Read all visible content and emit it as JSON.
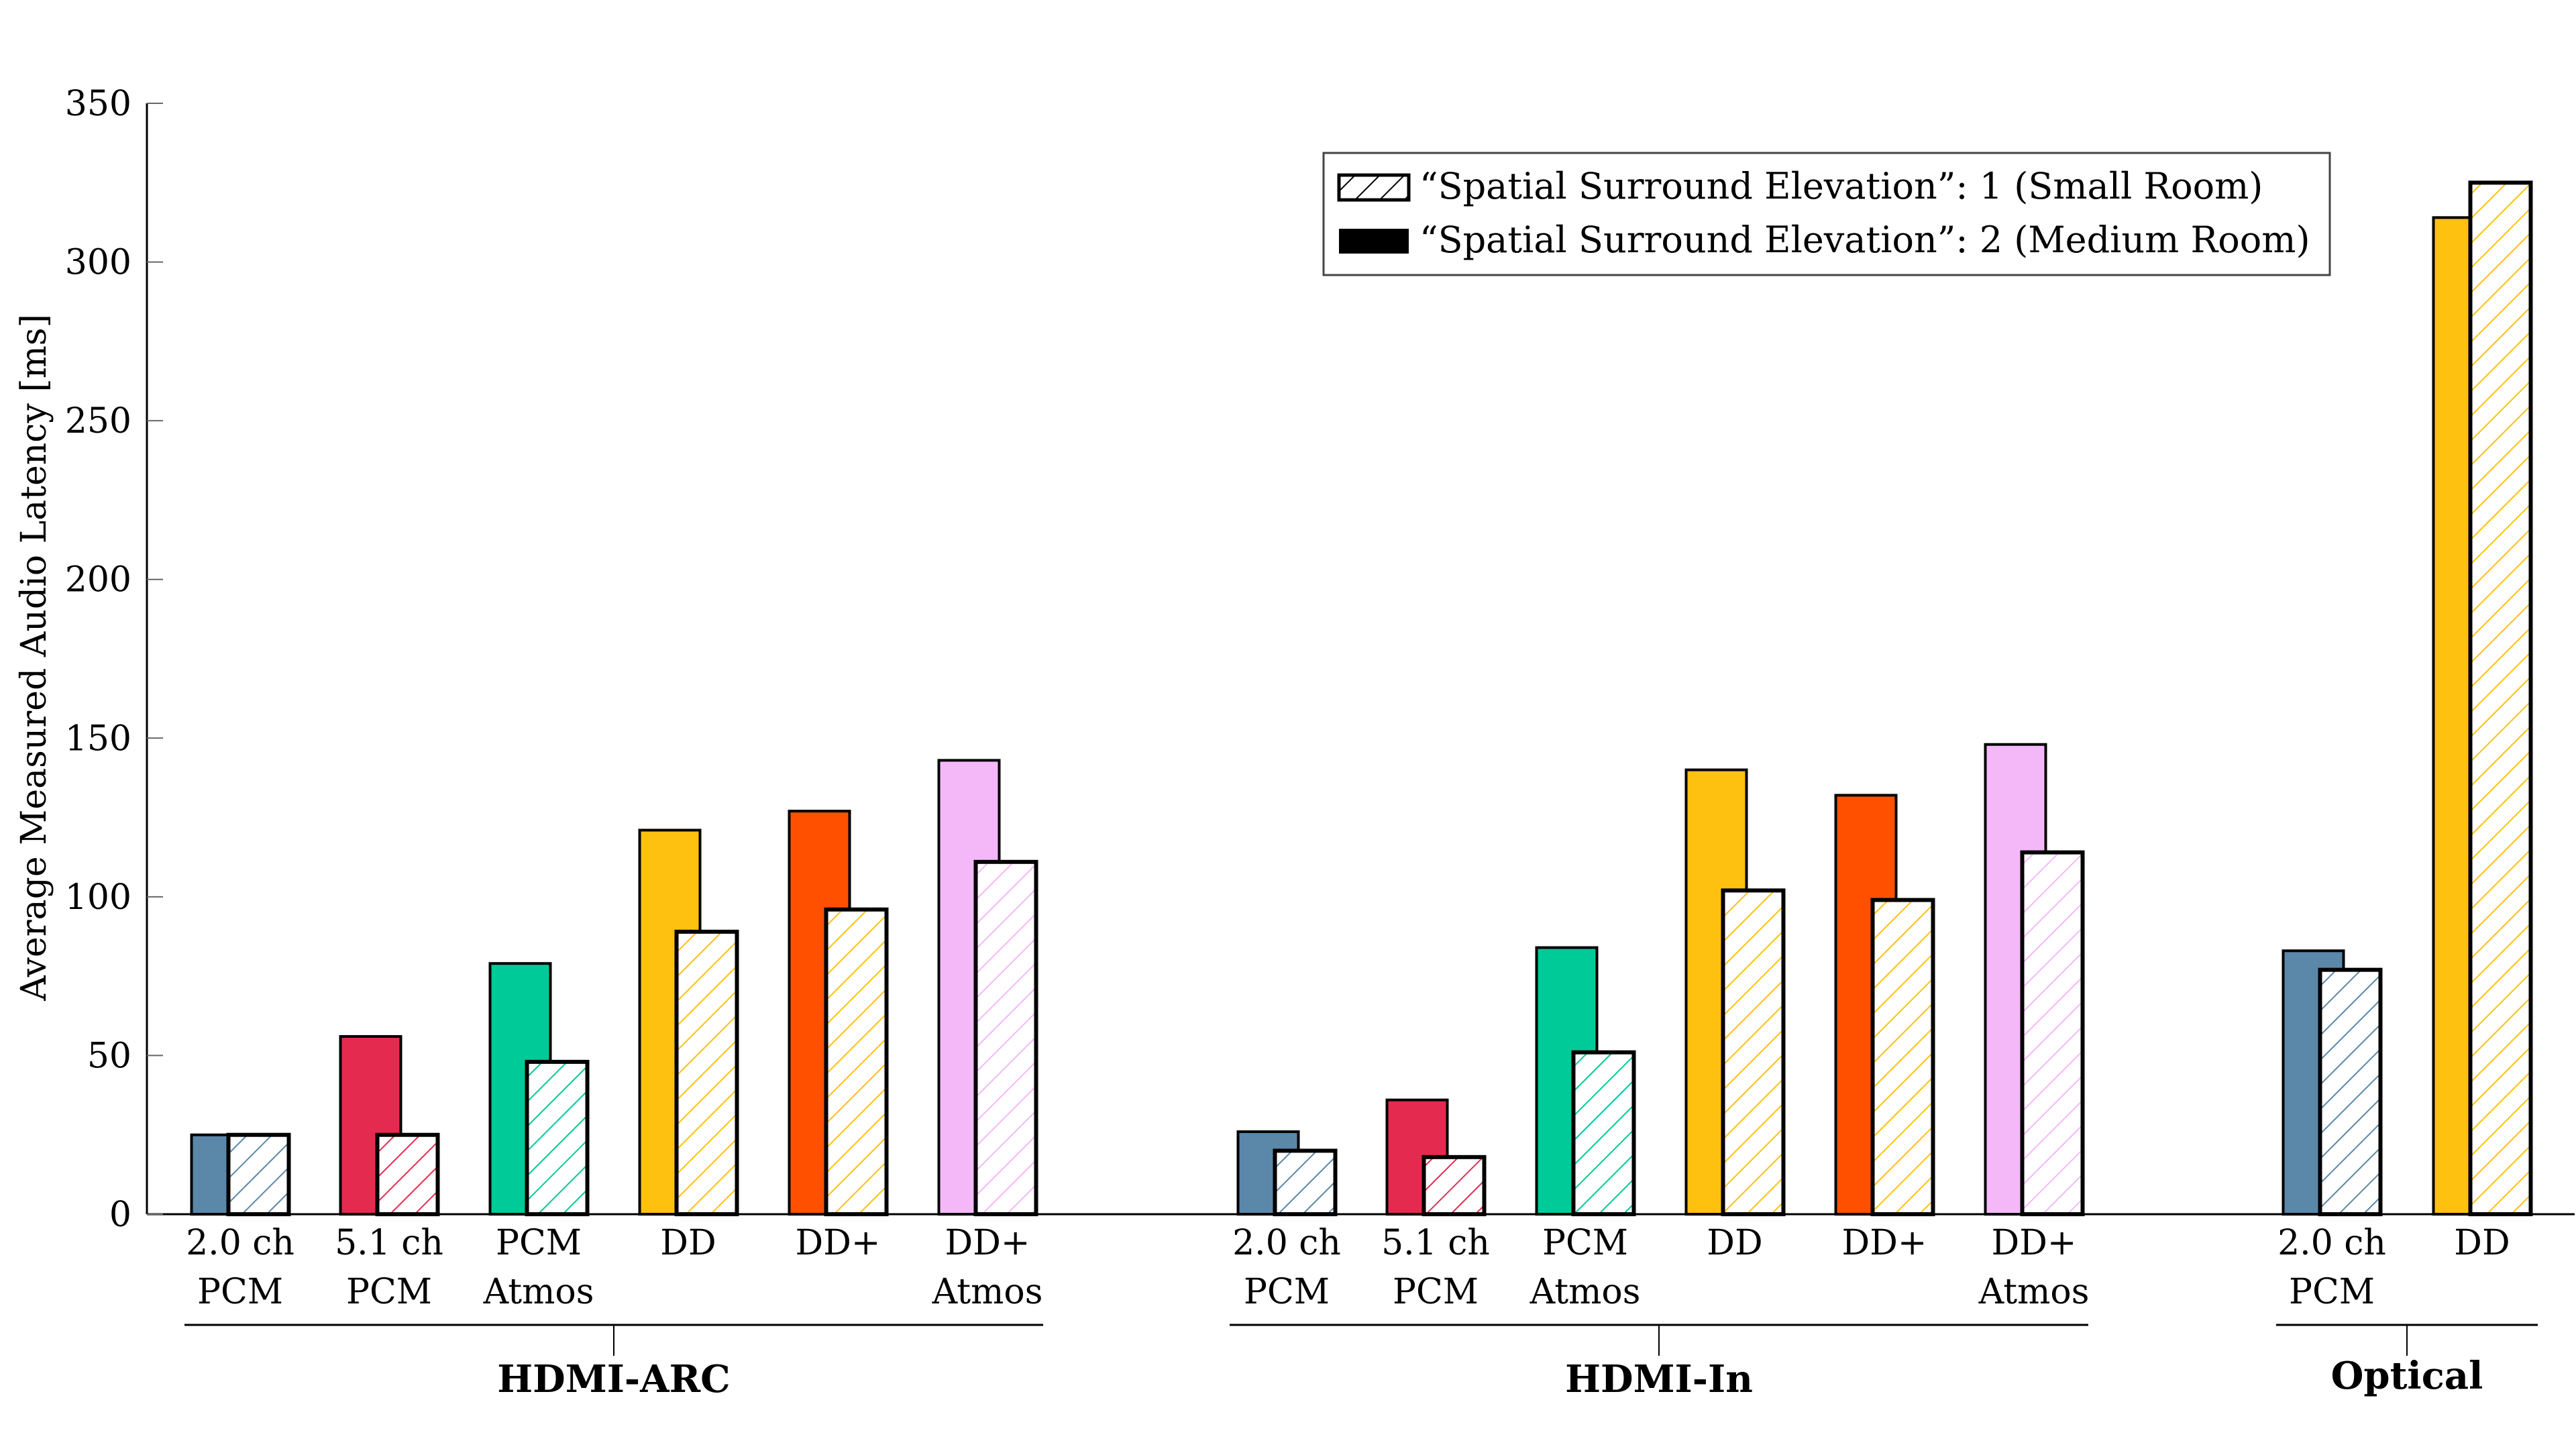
{
  "chart_data": {
    "type": "bar",
    "title": "",
    "xlabel": "",
    "ylabel": "Average Measured Audio Latency [ms]",
    "ylim": [
      0,
      350
    ],
    "yticks": [
      0,
      50,
      100,
      150,
      200,
      250,
      300,
      350
    ],
    "grid": false,
    "legend_position": "top-right",
    "legend": [
      {
        "label": "“Spatial Surround Elevation”: 1 (Small Room)",
        "style": "hatched"
      },
      {
        "label": "“Spatial Surround Elevation”: 2 (Medium Room)",
        "style": "solid"
      }
    ],
    "series_names": [
      "Spatial Surround Elevation: 2 (Medium Room)",
      "Spatial Surround Elevation: 1 (Small Room)"
    ],
    "category_colors": {
      "2.0 ch PCM": "#5b87a8",
      "5.1 ch PCM": "#e52a4f",
      "PCM Atmos": "#00ca97",
      "DD": "#fec10f",
      "DD+": "#ff5000",
      "DD+ Atmos": "#f4b8f9"
    },
    "groups": [
      {
        "name": "HDMI-ARC",
        "categories": [
          {
            "label": [
              "2.0 ch",
              "PCM"
            ],
            "key": "2.0 ch PCM",
            "medium_room": 25,
            "small_room": 25
          },
          {
            "label": [
              "5.1 ch",
              "PCM"
            ],
            "key": "5.1 ch PCM",
            "medium_room": 56,
            "small_room": 25
          },
          {
            "label": [
              "PCM",
              "Atmos"
            ],
            "key": "PCM Atmos",
            "medium_room": 79,
            "small_room": 48
          },
          {
            "label": [
              "DD",
              ""
            ],
            "key": "DD",
            "medium_room": 121,
            "small_room": 89
          },
          {
            "label": [
              "DD+",
              ""
            ],
            "key": "DD+",
            "medium_room": 127,
            "small_room": 96
          },
          {
            "label": [
              "DD+",
              "Atmos"
            ],
            "key": "DD+ Atmos",
            "medium_room": 143,
            "small_room": 111
          }
        ]
      },
      {
        "name": "HDMI-In",
        "categories": [
          {
            "label": [
              "2.0 ch",
              "PCM"
            ],
            "key": "2.0 ch PCM",
            "medium_room": 26,
            "small_room": 20
          },
          {
            "label": [
              "5.1 ch",
              "PCM"
            ],
            "key": "5.1 ch PCM",
            "medium_room": 36,
            "small_room": 18
          },
          {
            "label": [
              "PCM",
              "Atmos"
            ],
            "key": "PCM Atmos",
            "medium_room": 84,
            "small_room": 51
          },
          {
            "label": [
              "DD",
              ""
            ],
            "key": "DD",
            "medium_room": 140,
            "small_room": 102
          },
          {
            "label": [
              "DD+",
              ""
            ],
            "key": "DD+",
            "medium_room": 132,
            "small_room": 99
          },
          {
            "label": [
              "DD+",
              "Atmos"
            ],
            "key": "DD+ Atmos",
            "medium_room": 148,
            "small_room": 114
          }
        ]
      },
      {
        "name": "Optical",
        "categories": [
          {
            "label": [
              "2.0 ch",
              "PCM"
            ],
            "key": "2.0 ch PCM",
            "medium_room": 83,
            "small_room": 77
          },
          {
            "label": [
              "DD",
              ""
            ],
            "key": "DD",
            "medium_room": 314,
            "small_room": 325
          }
        ]
      }
    ]
  }
}
